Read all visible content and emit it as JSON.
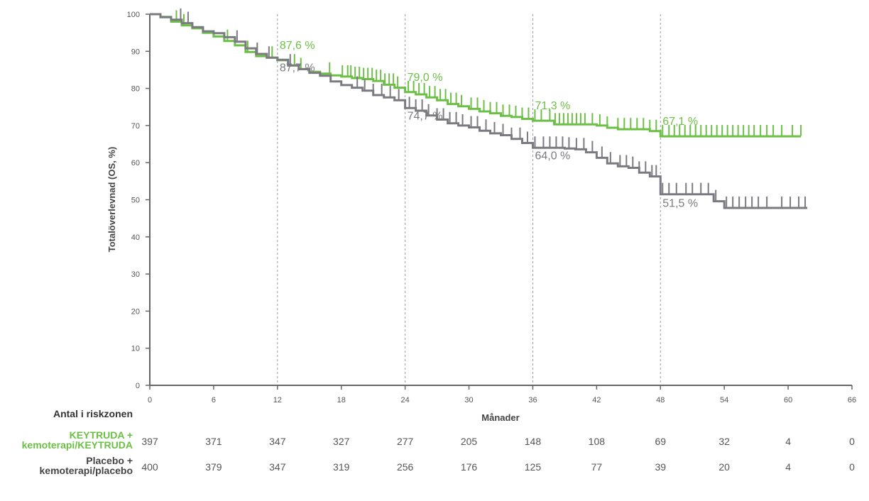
{
  "chart_data": {
    "type": "line",
    "step": true,
    "xlabel": "Månader",
    "ylabel": "Totalöverlevnad (OS, %)",
    "xlim": [
      0,
      66
    ],
    "ylim": [
      0,
      100
    ],
    "xticks": [
      0,
      6,
      12,
      18,
      24,
      30,
      36,
      42,
      48,
      54,
      60,
      66
    ],
    "yticks": [
      0,
      10,
      20,
      30,
      40,
      50,
      60,
      70,
      80,
      90,
      100
    ],
    "grid": false,
    "reference_lines_x": [
      12,
      24,
      36,
      48
    ],
    "colors": {
      "keytruda": "#6cbf45",
      "placebo": "#7a7a80",
      "axis": "#666666",
      "refline": "#9a9a9a"
    },
    "series": [
      {
        "id": "keytruda",
        "color": "#6cbf45",
        "x": [
          0,
          1,
          2,
          3,
          4,
          5,
          6,
          7,
          8,
          9,
          10,
          11,
          12,
          13,
          14,
          15,
          16,
          17,
          18,
          19,
          20,
          21,
          22,
          23,
          24,
          25,
          26,
          27,
          28,
          29,
          30,
          31,
          32,
          33,
          34,
          35,
          36,
          37,
          38,
          39,
          40,
          41,
          42,
          43,
          44,
          45,
          46,
          47,
          48,
          50,
          52,
          54,
          56,
          58,
          60,
          61.2
        ],
        "y": [
          100,
          99.3,
          98,
          97,
          96.2,
          95,
          94,
          92.8,
          91.6,
          89.8,
          88.7,
          88.3,
          87.6,
          86.2,
          85.2,
          84.5,
          84,
          83.5,
          83.2,
          82.8,
          82.5,
          82,
          81,
          80.2,
          79,
          78.4,
          77.6,
          76.8,
          75.8,
          75.2,
          74.5,
          73.8,
          73.3,
          72.6,
          72.3,
          71.8,
          71.3,
          71.3,
          70.3,
          70.3,
          70.3,
          70.3,
          70.0,
          69.4,
          69.0,
          69.0,
          69.0,
          68.5,
          67.1,
          67.1,
          67.1,
          67.1,
          67.1,
          67.1,
          67.1,
          67.1
        ],
        "censor": [
          2.5,
          3.2,
          7.3,
          9.2,
          11.5,
          13.6,
          14.2,
          16.9,
          18.1,
          18.6,
          18.9,
          19.3,
          19.7,
          20.1,
          20.5,
          20.9,
          21.3,
          21.7,
          22.1,
          22.5,
          22.9,
          23.3,
          24.3,
          24.8,
          25.3,
          25.8,
          26.3,
          26.8,
          27.3,
          27.8,
          28.3,
          28.8,
          29.3,
          30.2,
          30.8,
          31.4,
          32.0,
          32.6,
          33.2,
          33.8,
          34.4,
          35.0,
          35.6,
          36.2,
          36.8,
          37.6,
          38.1,
          38.5,
          38.9,
          39.3,
          39.7,
          40.1,
          40.5,
          40.9,
          41.6,
          42.3,
          43.0,
          44.0,
          44.6,
          45.2,
          45.8,
          46.4,
          47.0,
          47.6,
          48.2,
          48.8,
          49.3,
          49.8,
          50.3,
          50.8,
          51.3,
          51.8,
          52.3,
          52.8,
          53.3,
          53.8,
          54.3,
          54.8,
          55.3,
          55.8,
          56.3,
          56.8,
          57.4,
          58.0,
          58.6,
          59.4,
          60.4,
          61.2
        ]
      },
      {
        "id": "placebo",
        "color": "#7a7a80",
        "x": [
          0,
          1,
          2,
          3,
          4,
          5,
          6,
          7,
          8,
          9,
          10,
          11,
          12,
          13,
          14,
          15,
          16,
          17,
          18,
          19,
          20,
          21,
          22,
          23,
          24,
          25,
          26,
          27,
          28,
          29,
          30,
          31,
          32,
          33,
          34,
          35,
          36,
          37,
          38,
          39,
          40,
          41,
          42,
          43,
          44,
          45,
          46,
          47,
          48,
          49,
          50,
          51,
          52,
          53,
          54,
          56,
          58,
          60,
          61.8
        ],
        "y": [
          100,
          99.2,
          98.5,
          97.6,
          96.5,
          95.4,
          94.9,
          93.8,
          92.6,
          90.8,
          89.3,
          88.3,
          87.7,
          86.2,
          85.2,
          84.2,
          83.4,
          81.9,
          80.9,
          80.2,
          79.4,
          78.2,
          77.6,
          76.8,
          74.7,
          74.0,
          72.7,
          71.6,
          70.6,
          70.0,
          69.5,
          68.6,
          67.9,
          67.4,
          66.4,
          65.3,
          64.0,
          64.0,
          64.0,
          63.8,
          63.6,
          62.8,
          61.3,
          59.8,
          59.0,
          58.6,
          57.3,
          56.3,
          51.5,
          51.5,
          51.5,
          51.5,
          51.5,
          49.6,
          47.8,
          47.8,
          47.8,
          47.8,
          47.8
        ],
        "censor": [
          2.9,
          3.6,
          8.2,
          10.1,
          11.2,
          13.2,
          19.5,
          20.2,
          21.0,
          21.8,
          22.6,
          23.4,
          24.4,
          25.0,
          25.6,
          26.2,
          27.0,
          27.6,
          28.2,
          28.8,
          29.4,
          30.2,
          30.8,
          31.6,
          32.4,
          33.2,
          34.0,
          34.8,
          35.5,
          36.2,
          37.0,
          37.6,
          38.2,
          38.8,
          39.4,
          40.1,
          40.8,
          41.6,
          42.5,
          43.3,
          44.2,
          44.8,
          45.4,
          46.0,
          46.6,
          47.2,
          47.6,
          48.2,
          48.8,
          49.5,
          50.4,
          51.0,
          51.8,
          52.5,
          53.2,
          54.2,
          54.8,
          55.4,
          56.0,
          56.6,
          57.2,
          58.0,
          59.4,
          60.2,
          61.0,
          61.6
        ]
      }
    ],
    "annotations": {
      "keytruda": [
        {
          "x": 12,
          "y": 87.6,
          "text": "87,6 %"
        },
        {
          "x": 24,
          "y": 79.0,
          "text": "79,0 %"
        },
        {
          "x": 36,
          "y": 71.3,
          "text": "71,3 %"
        },
        {
          "x": 48,
          "y": 67.1,
          "text": "67,1 %"
        }
      ],
      "placebo": [
        {
          "x": 12,
          "y": 87.7,
          "text": "87,7 %"
        },
        {
          "x": 24,
          "y": 74.7,
          "text": "74,7 %"
        },
        {
          "x": 36,
          "y": 64.0,
          "text": "64,0 %"
        },
        {
          "x": 48,
          "y": 51.5,
          "text": "51,5 %"
        }
      ]
    },
    "risk_table": {
      "title": "Antal i riskzonen",
      "rows": [
        {
          "id": "keytruda",
          "label_lines": [
            "KEYTRUDA +",
            "kemoterapi/KEYTRUDA"
          ],
          "values": [
            397,
            371,
            347,
            327,
            277,
            205,
            148,
            108,
            69,
            32,
            4,
            0
          ]
        },
        {
          "id": "placebo",
          "label_lines": [
            "Placebo +",
            "kemoterapi/placebo"
          ],
          "values": [
            400,
            379,
            347,
            319,
            256,
            176,
            125,
            77,
            39,
            20,
            4,
            0
          ]
        }
      ]
    }
  }
}
